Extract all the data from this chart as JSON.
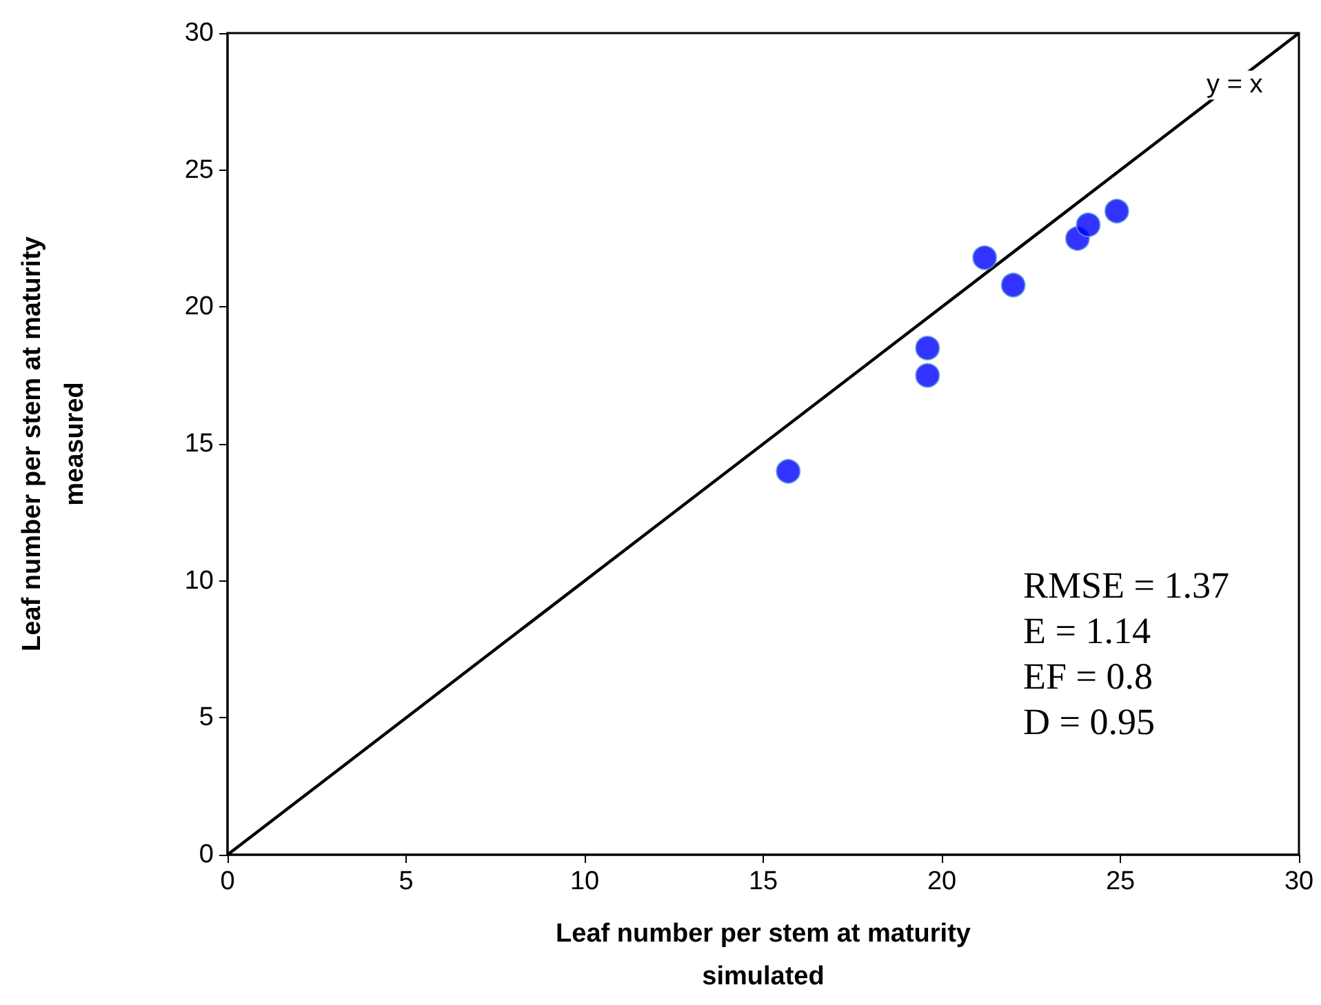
{
  "chart_data": {
    "type": "scatter",
    "xlabel": "Leaf number per stem at maturity\nsimulated",
    "ylabel": "Leaf number per stem at maturity\nmeasured",
    "xlim": [
      0,
      30
    ],
    "ylim": [
      0,
      30
    ],
    "xticks": [
      0,
      5,
      10,
      15,
      20,
      25,
      30
    ],
    "yticks": [
      0,
      5,
      10,
      15,
      20,
      25,
      30
    ],
    "grid": false,
    "series": [
      {
        "type": "scatter",
        "color": "#0000ff",
        "marker": "circle",
        "x": [
          15.7,
          19.6,
          19.6,
          21.2,
          22.0,
          23.8,
          24.1,
          24.9
        ],
        "values": [
          14.0,
          18.5,
          17.5,
          21.8,
          20.8,
          22.5,
          23.0,
          23.5
        ]
      },
      {
        "type": "line",
        "color": "#000000",
        "marker": "none",
        "line_style": "solid",
        "x": [
          0,
          30
        ],
        "values": [
          0,
          30
        ]
      }
    ],
    "annotations": [
      {
        "text": "y = x",
        "x": 28.2,
        "y": 28.1
      },
      "RMSE = 1.37\nE = 1.14\nEF = 0.8\nD = 0.95"
    ]
  }
}
